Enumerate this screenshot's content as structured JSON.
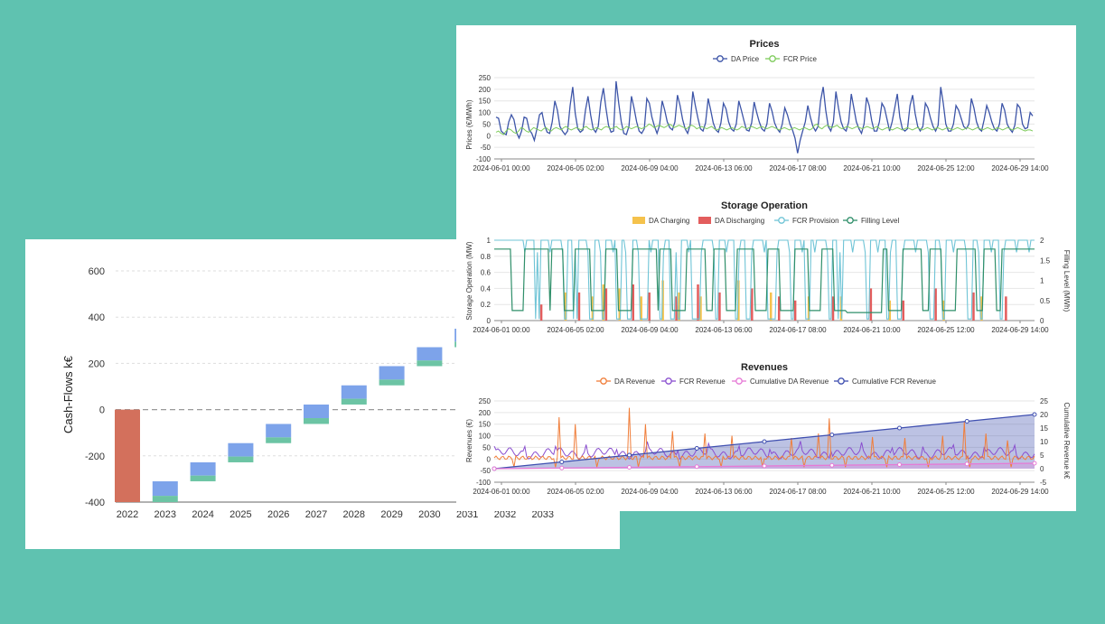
{
  "colors": {
    "background": "#5fc2b0",
    "cf_base": "#d3705c",
    "cf_top": "#7da3ea",
    "cf_bottom": "#6cc4a4",
    "da_price": "#3d55a8",
    "fcr_price": "#7ecb5b",
    "da_charging": "#f5c24c",
    "da_discharging": "#e35d5d",
    "fcr_provision": "#6fc4d6",
    "filling_level": "#2f8f6a",
    "da_revenue": "#f07e3a",
    "fcr_revenue": "#8a4fcf",
    "cum_da": "#e67ad6",
    "cum_fcr": "#3f4fb0"
  },
  "chart_data": [
    {
      "id": "cashflows",
      "type": "bar",
      "ylabel": "Cash-Flows k€",
      "ylim": [
        -400,
        600
      ],
      "y_ticks": [
        "600",
        "400",
        "200",
        "0",
        "-200",
        "-400"
      ],
      "y_tick_values": [
        600,
        400,
        200,
        0,
        -200,
        -400
      ],
      "grid": true,
      "categories": [
        "2022",
        "2023",
        "2024",
        "2025",
        "2026",
        "2027",
        "2028",
        "2029",
        "2030",
        "2031",
        "2032",
        "2033"
      ],
      "bars": [
        {
          "category": "2022",
          "start": 0,
          "end": -400,
          "kind": "initial"
        },
        {
          "category": "2023",
          "start": -400,
          "end": -310
        },
        {
          "category": "2024",
          "start": -310,
          "end": -228
        },
        {
          "category": "2025",
          "start": -228,
          "end": -145
        },
        {
          "category": "2026",
          "start": -145,
          "end": -62
        },
        {
          "category": "2027",
          "start": -62,
          "end": 22
        },
        {
          "category": "2028",
          "start": 22,
          "end": 105
        },
        {
          "category": "2029",
          "start": 105,
          "end": 188
        },
        {
          "category": "2030",
          "start": 188,
          "end": 270
        },
        {
          "category": "2031",
          "start": 270,
          "end": 350
        }
      ],
      "green_fraction": 0.3
    },
    {
      "id": "prices",
      "type": "line",
      "title": "Prices",
      "ylabel": "Prices (€/MWh)",
      "ylim": [
        -100,
        250
      ],
      "y_ticks": [
        "250",
        "200",
        "150",
        "100",
        "50",
        "0",
        "-50",
        "-100"
      ],
      "y_tick_values": [
        250,
        200,
        150,
        100,
        50,
        0,
        -50,
        -100
      ],
      "x_ticks": [
        "2024-06-01 00:00",
        "2024-06-05 02:00",
        "2024-06-09 04:00",
        "2024-06-13 06:00",
        "2024-06-17 08:00",
        "2024-06-21 10:00",
        "2024-06-25 12:00",
        "2024-06-29 14:00"
      ],
      "series": [
        {
          "name": "DA Price",
          "color_key": "da_price",
          "values": [
            80,
            75,
            20,
            10,
            5,
            60,
            90,
            70,
            15,
            -10,
            20,
            80,
            75,
            25,
            10,
            -20,
            30,
            90,
            100,
            45,
            15,
            10,
            60,
            150,
            110,
            40,
            20,
            5,
            20,
            130,
            210,
            95,
            30,
            15,
            25,
            110,
            170,
            90,
            30,
            15,
            40,
            145,
            205,
            120,
            45,
            15,
            20,
            235,
            140,
            60,
            10,
            5,
            40,
            170,
            120,
            60,
            20,
            10,
            30,
            160,
            140,
            80,
            40,
            10,
            45,
            150,
            110,
            60,
            35,
            25,
            60,
            175,
            130,
            70,
            30,
            10,
            50,
            190,
            130,
            75,
            30,
            20,
            55,
            160,
            110,
            55,
            25,
            15,
            55,
            140,
            115,
            60,
            30,
            20,
            50,
            150,
            110,
            65,
            25,
            20,
            55,
            145,
            100,
            60,
            30,
            20,
            50,
            140,
            105,
            55,
            30,
            15,
            50,
            120,
            90,
            50,
            25,
            -10,
            -75,
            -20,
            20,
            60,
            130,
            80,
            40,
            20,
            40,
            150,
            210,
            110,
            40,
            20,
            60,
            190,
            120,
            60,
            30,
            20,
            60,
            180,
            120,
            60,
            30,
            10,
            50,
            165,
            130,
            65,
            20,
            20,
            60,
            140,
            120,
            70,
            20,
            60,
            120,
            180,
            80,
            30,
            20,
            30,
            130,
            175,
            95,
            40,
            20,
            40,
            140,
            120,
            75,
            40,
            20,
            45,
            210,
            140,
            50,
            20,
            20,
            50,
            130,
            110,
            75,
            40,
            30,
            50,
            160,
            120,
            60,
            30,
            20,
            70,
            130,
            100,
            60,
            30,
            20,
            50,
            140,
            110,
            50,
            30,
            15,
            45,
            135,
            120,
            50,
            30,
            35,
            100,
            85
          ]
        },
        {
          "name": "FCR Price",
          "color_key": "fcr_price",
          "values": [
            15,
            20,
            10,
            5,
            20,
            30,
            25,
            15,
            10,
            20,
            35,
            30,
            20,
            15,
            25,
            35,
            30,
            25,
            20,
            30,
            35,
            25,
            20,
            30,
            35,
            30,
            25,
            35,
            40,
            30,
            25,
            30,
            35,
            30,
            25,
            35,
            40,
            30,
            25,
            30,
            35,
            30,
            25,
            35,
            40,
            35,
            30,
            35,
            40,
            30,
            25,
            30,
            40,
            35,
            30,
            35,
            40,
            35,
            30,
            35,
            40,
            50,
            45,
            35,
            40,
            45,
            40,
            35,
            40,
            50,
            45,
            35,
            40,
            45,
            40,
            35,
            30,
            40,
            45,
            40,
            30,
            35,
            40,
            35,
            30,
            35,
            40,
            30,
            25,
            30,
            35,
            30,
            25,
            30,
            35,
            30,
            25,
            30,
            40,
            35,
            30,
            35,
            40,
            35,
            30,
            35,
            40,
            35,
            30,
            35,
            40,
            35,
            30,
            25,
            30,
            35,
            30,
            25,
            30,
            35,
            30,
            25,
            30,
            35,
            30,
            25,
            30,
            45,
            50,
            35,
            30,
            40,
            45,
            40,
            35,
            40,
            45,
            35,
            30,
            35,
            40,
            35,
            30,
            35,
            40,
            35,
            30,
            35,
            40,
            35,
            30,
            35,
            40,
            30,
            25,
            30,
            35,
            30,
            25,
            30,
            35,
            30,
            25,
            30,
            35,
            30,
            25,
            30,
            35,
            30,
            25,
            30,
            35,
            30,
            25,
            30,
            35,
            30,
            25,
            30,
            35,
            30,
            25,
            30,
            35,
            30,
            25,
            30,
            35,
            30,
            25,
            30,
            35,
            30,
            25,
            30,
            35,
            30,
            25,
            30,
            35,
            30,
            25,
            30,
            35,
            30,
            25,
            30,
            35,
            30,
            25,
            20,
            25,
            25,
            20
          ]
        }
      ]
    },
    {
      "id": "storage",
      "type": "line",
      "title": "Storage Operation",
      "ylabel": "Storage Operation (MW)",
      "y2label": "Filling Level (MWh)",
      "ylim": [
        0,
        1
      ],
      "y2lim": [
        0,
        2
      ],
      "y_ticks": [
        "1",
        "0.8",
        "0.6",
        "0.4",
        "0.2",
        "0"
      ],
      "y_tick_values": [
        1,
        0.8,
        0.6,
        0.4,
        0.2,
        0
      ],
      "y2_ticks": [
        "2",
        "1.5",
        "1",
        "0.5",
        "0"
      ],
      "y2_tick_values": [
        2,
        1.5,
        1,
        0.5,
        0
      ],
      "x_ticks": [
        "2024-06-01 00:00",
        "2024-06-05 02:00",
        "2024-06-09 04:00",
        "2024-06-13 06:00",
        "2024-06-17 08:00",
        "2024-06-21 10:00",
        "2024-06-25 12:00",
        "2024-06-29 14:00"
      ],
      "series": [
        {
          "name": "DA Charging",
          "color_key": "da_charging",
          "kind": "bar"
        },
        {
          "name": "DA Discharging",
          "color_key": "da_discharging",
          "kind": "bar"
        },
        {
          "name": "FCR Provision",
          "color_key": "fcr_provision",
          "kind": "line"
        },
        {
          "name": "Filling Level",
          "color_key": "filling_level",
          "kind": "line"
        }
      ],
      "charge_events": [
        [
          0.13,
          0.35
        ],
        [
          0.18,
          0.3
        ],
        [
          0.2,
          0.45
        ],
        [
          0.23,
          0.4
        ],
        [
          0.27,
          0.3
        ],
        [
          0.31,
          0.5
        ],
        [
          0.34,
          0.35
        ],
        [
          0.38,
          0.3
        ],
        [
          0.45,
          0.5
        ],
        [
          0.51,
          0.35
        ],
        [
          0.58,
          0.3
        ],
        [
          0.64,
          0.3
        ],
        [
          0.73,
          0.25
        ],
        [
          0.83,
          0.25
        ],
        [
          0.9,
          0.3
        ]
      ],
      "discharge_events": [
        [
          0.08,
          0.2
        ],
        [
          0.15,
          0.35
        ],
        [
          0.2,
          0.4
        ],
        [
          0.25,
          0.45
        ],
        [
          0.28,
          0.35
        ],
        [
          0.33,
          0.3
        ],
        [
          0.37,
          0.45
        ],
        [
          0.41,
          0.35
        ],
        [
          0.47,
          0.4
        ],
        [
          0.52,
          0.3
        ],
        [
          0.55,
          0.25
        ],
        [
          0.62,
          0.3
        ],
        [
          0.69,
          0.4
        ],
        [
          0.75,
          0.25
        ],
        [
          0.81,
          0.4
        ],
        [
          0.88,
          0.35
        ],
        [
          0.94,
          0.3
        ]
      ],
      "fill_blocks": [
        [
          0.0,
          0.03
        ],
        [
          0.07,
          0.1
        ],
        [
          0.15,
          0.17
        ],
        [
          0.26,
          0.3
        ],
        [
          0.37,
          0.39
        ],
        [
          0.45,
          0.48
        ],
        [
          0.56,
          0.58
        ],
        [
          0.66,
          0.69
        ],
        [
          0.77,
          0.79
        ],
        [
          0.86,
          0.89
        ],
        [
          0.94,
          0.96
        ]
      ]
    },
    {
      "id": "revenues",
      "type": "line",
      "title": "Revenues",
      "ylabel": "Revenues (€)",
      "y2label": "Cumulative Revenue k€",
      "ylim": [
        -100,
        250
      ],
      "y2lim": [
        -5,
        25
      ],
      "y_ticks": [
        "250",
        "200",
        "150",
        "100",
        "50",
        "0",
        "-50",
        "-100"
      ],
      "y_tick_values": [
        250,
        200,
        150,
        100,
        50,
        0,
        -50,
        -100
      ],
      "y2_ticks": [
        "25",
        "20",
        "15",
        "10",
        "5",
        "0",
        "-5"
      ],
      "y2_tick_values": [
        25,
        20,
        15,
        10,
        5,
        0,
        -5
      ],
      "x_ticks": [
        "2024-06-01 00:00",
        "2024-06-05 02:00",
        "2024-06-09 04:00",
        "2024-06-13 06:00",
        "2024-06-17 08:00",
        "2024-06-21 10:00",
        "2024-06-25 12:00",
        "2024-06-29 14:00"
      ],
      "series": [
        {
          "name": "DA Revenue",
          "color_key": "da_revenue"
        },
        {
          "name": "FCR Revenue",
          "color_key": "fcr_revenue"
        },
        {
          "name": "Cumulative DA Revenue",
          "color_key": "cum_da",
          "axis": "right",
          "end_value": 2
        },
        {
          "name": "Cumulative FCR Revenue",
          "color_key": "cum_fcr",
          "axis": "right",
          "end_value": 20
        }
      ],
      "da_spikes": [
        [
          0.12,
          180
        ],
        [
          0.15,
          150
        ],
        [
          0.19,
          140
        ],
        [
          0.25,
          220
        ],
        [
          0.28,
          150
        ],
        [
          0.33,
          120
        ],
        [
          0.39,
          110
        ],
        [
          0.44,
          100
        ],
        [
          0.55,
          90
        ],
        [
          0.6,
          110
        ],
        [
          0.62,
          175
        ],
        [
          0.7,
          95
        ],
        [
          0.76,
          90
        ],
        [
          0.83,
          100
        ],
        [
          0.87,
          160
        ],
        [
          0.91,
          110
        ],
        [
          0.95,
          80
        ]
      ]
    }
  ]
}
